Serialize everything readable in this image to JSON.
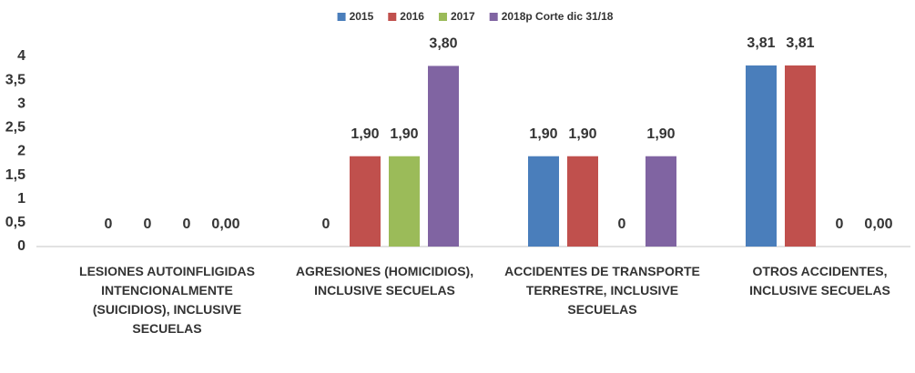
{
  "chart_data": {
    "type": "bar",
    "categories": [
      "LESIONES AUTOINFLIGIDAS INTENCIONALMENTE (SUICIDIOS), INCLUSIVE SECUELAS",
      "AGRESIONES (HOMICIDIOS), INCLUSIVE SECUELAS",
      "ACCIDENTES DE TRANSPORTE TERRESTRE, INCLUSIVE SECUELAS",
      "OTROS ACCIDENTES, INCLUSIVE SECUELAS"
    ],
    "series": [
      {
        "name": "2015",
        "color": "#4a7ebb",
        "values": [
          0,
          0,
          1.9,
          3.81
        ],
        "value_labels": [
          "0",
          "0",
          "1,90",
          "3,81"
        ]
      },
      {
        "name": "2016",
        "color": "#c0504d",
        "values": [
          0,
          1.9,
          1.9,
          3.81
        ],
        "value_labels": [
          "0",
          "1,90",
          "1,90",
          "3,81"
        ]
      },
      {
        "name": "2017",
        "color": "#9bbb59",
        "values": [
          0,
          1.9,
          0,
          0
        ],
        "value_labels": [
          "0",
          "1,90",
          "0",
          "0"
        ]
      },
      {
        "name": "2018p Corte dic 31/18",
        "color": "#8064a2",
        "values": [
          0,
          3.8,
          1.9,
          0
        ],
        "value_labels": [
          "0,00",
          "3,80",
          "1,90",
          "0,00"
        ]
      }
    ],
    "ylim": [
      0,
      4
    ],
    "yticks": [
      0,
      {
        "value": 0.5,
        "label": "0,5"
      },
      1,
      {
        "value": 1.5,
        "label": "1,5"
      },
      2,
      {
        "value": 2.5,
        "label": "2,5"
      },
      3,
      {
        "value": 3.5,
        "label": "3,5"
      },
      4
    ],
    "grid": false,
    "legend": "top"
  }
}
